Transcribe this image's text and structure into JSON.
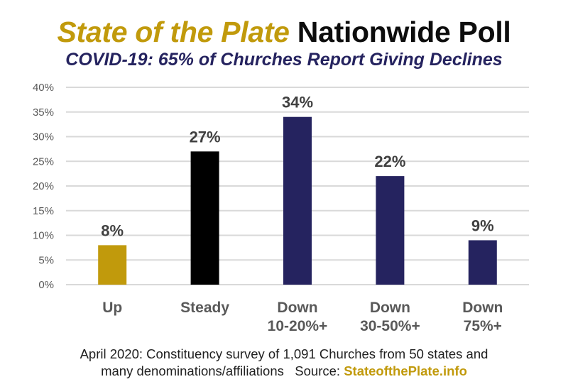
{
  "header": {
    "title_brand": "State of the Plate",
    "title_rest": "Nationwide Poll",
    "subtitle": "COVID-19: 65% of Churches Report Giving Declines"
  },
  "colors": {
    "gold": "#c19a0c",
    "black": "#000000",
    "navy": "#25235f",
    "gridline": "#d9d9d9",
    "tick_text": "#595959",
    "label_text": "#404040"
  },
  "chart_data": {
    "type": "bar",
    "title": "State of the Plate Nationwide Poll",
    "subtitle": "COVID-19: 65% of Churches Report Giving Declines",
    "xlabel": "",
    "ylabel": "",
    "categories": [
      [
        "Up"
      ],
      [
        "Steady"
      ],
      [
        "Down",
        "10-20%+"
      ],
      [
        "Down",
        "30-50%+"
      ],
      [
        "Down",
        "75%+"
      ]
    ],
    "values": [
      8,
      27,
      34,
      22,
      9
    ],
    "data_labels": [
      "8%",
      "27%",
      "34%",
      "22%",
      "9%"
    ],
    "bar_colors": [
      "#c19a0c",
      "#000000",
      "#25235f",
      "#25235f",
      "#25235f"
    ],
    "ylim": [
      0,
      40
    ],
    "yticks": [
      0,
      5,
      10,
      15,
      20,
      25,
      30,
      35,
      40
    ],
    "ytick_labels": [
      "0%",
      "5%",
      "10%",
      "15%",
      "20%",
      "25%",
      "30%",
      "35%",
      "40%"
    ],
    "grid": true,
    "legend": "none"
  },
  "footer": {
    "line1": "April 2020: Constituency survey of 1,091 Churches from 50 states and",
    "line2_text": "many denominations/affiliations   Source: ",
    "source_link": "StateofthePlate.info"
  }
}
